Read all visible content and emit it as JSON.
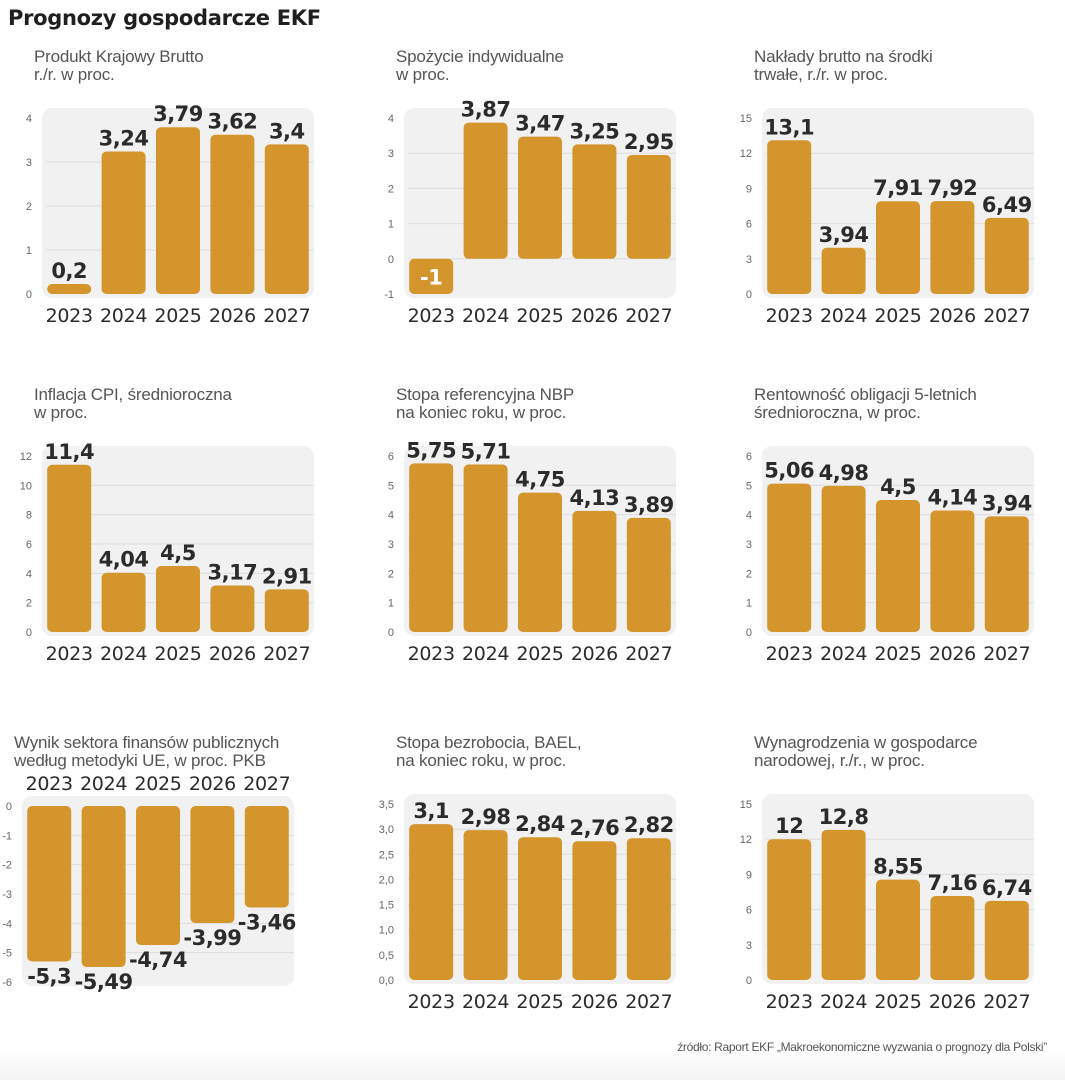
{
  "header": {
    "title": "Prognozy gospodarcze EKF"
  },
  "footer": {
    "source": "źródło: Raport EKF „Makroekonomiczne wyzwania o prognozy dla Polski”"
  },
  "colors": {
    "bar": "#D4952C",
    "panel_bg": "#F1F1F2",
    "grid": "#DDDDDD",
    "label": "#2B2B2B",
    "tick": "#666666"
  },
  "chart_data": [
    {
      "type": "bar",
      "title": "Produkt Krajowy Brutto\nr./r. w proc.",
      "categories": [
        "2023",
        "2024",
        "2025",
        "2026",
        "2027"
      ],
      "values": [
        0.2,
        3.24,
        3.79,
        3.62,
        3.4
      ],
      "value_labels": [
        "0,2",
        "3,24",
        "3,79",
        "3,62",
        "3,4"
      ],
      "ylim": [
        0,
        4
      ],
      "yticks": [
        "0",
        "1",
        "2",
        "3",
        "4"
      ],
      "ytick_values": [
        0,
        1,
        2,
        3,
        4
      ],
      "grid": true,
      "xlabel": "",
      "ylabel": ""
    },
    {
      "type": "bar",
      "title": "Spożycie indywidualne\nw proc.",
      "categories": [
        "2023",
        "2024",
        "2025",
        "2026",
        "2027"
      ],
      "values": [
        -1,
        3.87,
        3.47,
        3.25,
        2.95
      ],
      "value_labels": [
        "-1",
        "3,87",
        "3,47",
        "3,25",
        "2,95"
      ],
      "ylim": [
        -1,
        4
      ],
      "yticks": [
        "-1",
        "0",
        "1",
        "2",
        "3",
        "4"
      ],
      "ytick_values": [
        -1,
        0,
        1,
        2,
        3,
        4
      ],
      "grid": true,
      "xlabel": "",
      "ylabel": ""
    },
    {
      "type": "bar",
      "title": "Nakłady brutto na środki\ntrwałe, r./r. w proc.",
      "categories": [
        "2023",
        "2024",
        "2025",
        "2026",
        "2027"
      ],
      "values": [
        13.1,
        3.94,
        7.91,
        7.92,
        6.49
      ],
      "value_labels": [
        "13,1",
        "3,94",
        "7,91",
        "7,92",
        "6,49"
      ],
      "ylim": [
        0,
        15
      ],
      "yticks": [
        "0",
        "3",
        "6",
        "9",
        "12",
        "15"
      ],
      "ytick_values": [
        0,
        3,
        6,
        9,
        12,
        15
      ],
      "grid": true,
      "xlabel": "",
      "ylabel": ""
    },
    {
      "type": "bar",
      "title": "Inflacja CPI, średnioroczna\nw proc.",
      "categories": [
        "2023",
        "2024",
        "2025",
        "2026",
        "2027"
      ],
      "values": [
        11.4,
        4.04,
        4.5,
        3.17,
        2.91
      ],
      "value_labels": [
        "11,4",
        "4,04",
        "4,5",
        "3,17",
        "2,91"
      ],
      "ylim": [
        0,
        12
      ],
      "yticks": [
        "0",
        "2",
        "4",
        "6",
        "8",
        "10",
        "12"
      ],
      "ytick_values": [
        0,
        2,
        4,
        6,
        8,
        10,
        12
      ],
      "grid": true,
      "xlabel": "",
      "ylabel": ""
    },
    {
      "type": "bar",
      "title": "Stopa referencyjna NBP\nna koniec roku, w proc.",
      "categories": [
        "2023",
        "2024",
        "2025",
        "2026",
        "2027"
      ],
      "values": [
        5.75,
        5.71,
        4.75,
        4.13,
        3.89
      ],
      "value_labels": [
        "5,75",
        "5,71",
        "4,75",
        "4,13",
        "3,89"
      ],
      "ylim": [
        0,
        6
      ],
      "yticks": [
        "0",
        "1",
        "2",
        "3",
        "4",
        "5",
        "6"
      ],
      "ytick_values": [
        0,
        1,
        2,
        3,
        4,
        5,
        6
      ],
      "grid": true,
      "xlabel": "",
      "ylabel": ""
    },
    {
      "type": "bar",
      "title": "Rentowność obligacji 5-letnich\nśrednioroczna, w proc.",
      "categories": [
        "2023",
        "2024",
        "2025",
        "2026",
        "2027"
      ],
      "values": [
        5.06,
        4.98,
        4.5,
        4.14,
        3.94
      ],
      "value_labels": [
        "5,06",
        "4,98",
        "4,5",
        "4,14",
        "3,94"
      ],
      "ylim": [
        0,
        6
      ],
      "yticks": [
        "0",
        "1",
        "2",
        "3",
        "4",
        "5",
        "6"
      ],
      "ytick_values": [
        0,
        1,
        2,
        3,
        4,
        5,
        6
      ],
      "grid": true,
      "xlabel": "",
      "ylabel": ""
    },
    {
      "type": "bar",
      "title": "Wynik sektora finansów publicznych\nwedług metodyki UE, w proc. PKB",
      "categories": [
        "2023",
        "2024",
        "2025",
        "2026",
        "2027"
      ],
      "values": [
        -5.3,
        -5.49,
        -4.74,
        -3.99,
        -3.46
      ],
      "value_labels": [
        "-5,3",
        "-5,49",
        "-4,74",
        "-3,99",
        "-3,46"
      ],
      "ylim": [
        -6,
        0
      ],
      "yticks": [
        "-6",
        "-5",
        "-4",
        "-3",
        "-2",
        "-1",
        "0"
      ],
      "ytick_values": [
        -6,
        -5,
        -4,
        -3,
        -2,
        -1,
        0
      ],
      "grid": true,
      "category_axis": "top",
      "xlabel": "",
      "ylabel": ""
    },
    {
      "type": "bar",
      "title": "Stopa bezrobocia, BAEL,\nna koniec roku, w proc.",
      "categories": [
        "2023",
        "2024",
        "2025",
        "2026",
        "2027"
      ],
      "values": [
        3.1,
        2.98,
        2.84,
        2.76,
        2.82
      ],
      "value_labels": [
        "3,1",
        "2,98",
        "2,84",
        "2,76",
        "2,82"
      ],
      "ylim": [
        0,
        3.5
      ],
      "yticks": [
        "0,0",
        "0,5",
        "1,0",
        "1,5",
        "2,0",
        "2,5",
        "3,0",
        "3,5"
      ],
      "ytick_values": [
        0,
        0.5,
        1,
        1.5,
        2,
        2.5,
        3,
        3.5
      ],
      "grid": true,
      "xlabel": "",
      "ylabel": ""
    },
    {
      "type": "bar",
      "title": "Wynagrodzenia w gospodarce\nnarodowej, r./r., w proc.",
      "categories": [
        "2023",
        "2024",
        "2025",
        "2026",
        "2027"
      ],
      "values": [
        12,
        12.8,
        8.55,
        7.16,
        6.74
      ],
      "value_labels": [
        "12",
        "12,8",
        "8,55",
        "7,16",
        "6,74"
      ],
      "ylim": [
        0,
        15
      ],
      "yticks": [
        "0",
        "3",
        "6",
        "9",
        "12",
        "15"
      ],
      "ytick_values": [
        0,
        3,
        6,
        9,
        12,
        15
      ],
      "grid": true,
      "xlabel": "",
      "ylabel": ""
    }
  ]
}
